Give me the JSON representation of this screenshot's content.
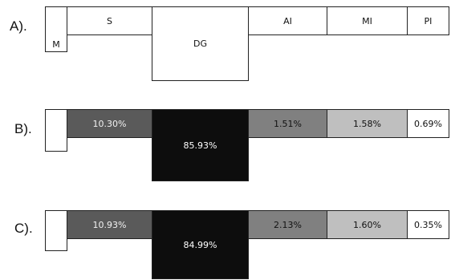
{
  "rows": [
    {
      "label": "A).",
      "cells": [
        {
          "text": "M",
          "fill": "#ffffff",
          "text_color": "#111111"
        },
        {
          "text": "S",
          "fill": "#ffffff",
          "text_color": "#111111"
        },
        {
          "text": "DG",
          "fill": "#ffffff",
          "text_color": "#111111"
        },
        {
          "text": "AI",
          "fill": "#ffffff",
          "text_color": "#111111"
        },
        {
          "text": "MI",
          "fill": "#ffffff",
          "text_color": "#111111"
        },
        {
          "text": "PI",
          "fill": "#ffffff",
          "text_color": "#111111"
        }
      ]
    },
    {
      "label": "B).",
      "cells": [
        {
          "text": "",
          "fill": "#ffffff",
          "text_color": "#111111"
        },
        {
          "text": "10.30%",
          "fill": "#5a5a5a",
          "text_color": "#f2f2f2"
        },
        {
          "text": "85.93%",
          "fill": "#0d0d0d",
          "text_color": "#ffffff"
        },
        {
          "text": "1.51%",
          "fill": "#808080",
          "text_color": "#111111"
        },
        {
          "text": "1.58%",
          "fill": "#bfbfbf",
          "text_color": "#111111"
        },
        {
          "text": "0.69%",
          "fill": "#ffffff",
          "text_color": "#111111"
        }
      ]
    },
    {
      "label": "C).",
      "cells": [
        {
          "text": "",
          "fill": "#ffffff",
          "text_color": "#111111"
        },
        {
          "text": "10.93%",
          "fill": "#5a5a5a",
          "text_color": "#f2f2f2"
        },
        {
          "text": "84.99%",
          "fill": "#0d0d0d",
          "text_color": "#ffffff"
        },
        {
          "text": "2.13%",
          "fill": "#808080",
          "text_color": "#111111"
        },
        {
          "text": "1.60%",
          "fill": "#bfbfbf",
          "text_color": "#111111"
        },
        {
          "text": "0.35%",
          "fill": "#ffffff",
          "text_color": "#111111"
        }
      ]
    }
  ]
}
